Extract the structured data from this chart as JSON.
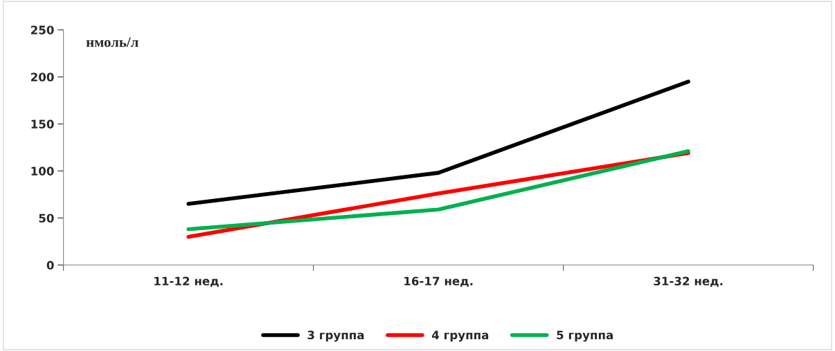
{
  "chart_data": {
    "type": "line",
    "ylabel": "нмоль/л",
    "categories": [
      "11-12 нед.",
      "16-17 нед.",
      "31-32 нед."
    ],
    "series": [
      {
        "name": "3 группа",
        "color": "#000000",
        "values": [
          65,
          98,
          195
        ]
      },
      {
        "name": "4 группа",
        "color": "#ff0000",
        "values": [
          30,
          76,
          119
        ]
      },
      {
        "name": "5 группа",
        "color": "#00b050",
        "values": [
          38,
          59,
          121
        ]
      }
    ],
    "ylim": [
      0,
      250
    ],
    "yticks": [
      0,
      50,
      100,
      150,
      200,
      250
    ],
    "grid": false,
    "legend": "bottom",
    "marker": "none",
    "line_style": "solid"
  }
}
